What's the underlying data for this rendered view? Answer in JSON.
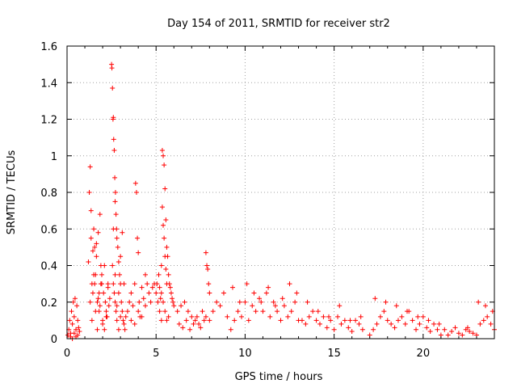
{
  "chart_data": {
    "type": "scatter",
    "title": "Day 154 of 2011, SRMTID for receiver str2",
    "xlabel": "GPS time / hours",
    "ylabel": "SRMTID / TECUs",
    "xlim": [
      0,
      24
    ],
    "ylim": [
      0,
      1.6
    ],
    "xticks": [
      0,
      5,
      10,
      15,
      20
    ],
    "xtick_labels": [
      "0",
      "5",
      "10",
      "15",
      "20"
    ],
    "yticks": [
      0,
      0.2,
      0.4,
      0.6,
      0.8,
      1.0,
      1.2,
      1.4,
      1.6
    ],
    "ytick_labels": [
      "0",
      "0.2",
      "0.4",
      "0.6",
      "0.8",
      "1",
      "1.2",
      "1.4",
      "1.6"
    ],
    "grid": true,
    "marker": "+",
    "series": [
      {
        "name": "SRMTID",
        "color": "#ff0000",
        "x": [
          0.05,
          0.1,
          0.15,
          0.2,
          0.25,
          0.3,
          0.35,
          0.4,
          0.45,
          0.5,
          0.55,
          0.6,
          0.65,
          0.7,
          0.2,
          0.3,
          0.4,
          0.5,
          0.6,
          1.2,
          1.25,
          1.3,
          1.35,
          1.4,
          1.45,
          1.5,
          1.55,
          1.6,
          1.65,
          1.7,
          1.75,
          1.8,
          1.85,
          1.9,
          1.95,
          2.0,
          2.05,
          2.1,
          2.15,
          2.2,
          2.25,
          2.3,
          2.35,
          2.4,
          1.3,
          1.4,
          1.5,
          1.6,
          1.7,
          1.8,
          1.9,
          2.0,
          2.1,
          2.2,
          2.3,
          1.35,
          1.45,
          1.55,
          1.65,
          1.75,
          1.85,
          1.95,
          2.5,
          2.52,
          2.55,
          2.58,
          2.6,
          2.62,
          2.65,
          2.68,
          2.7,
          2.72,
          2.75,
          2.78,
          2.8,
          2.85,
          2.9,
          2.95,
          3.0,
          3.05,
          3.1,
          3.15,
          3.2,
          3.25,
          3.3,
          2.55,
          2.6,
          2.65,
          2.7,
          2.75,
          2.8,
          2.9,
          3.0,
          3.1,
          3.2,
          2.6,
          2.7,
          2.8,
          2.9,
          3.0,
          3.4,
          3.5,
          3.6,
          3.7,
          3.8,
          3.85,
          3.9,
          3.95,
          4.0,
          4.05,
          4.1,
          4.2,
          4.3,
          4.4,
          4.5,
          4.6,
          4.7,
          4.8,
          4.9,
          3.6,
          3.8,
          4.0,
          4.2,
          4.4,
          5.0,
          5.05,
          5.1,
          5.15,
          5.2,
          5.25,
          5.3,
          5.35,
          5.4,
          5.45,
          5.5,
          5.55,
          5.6,
          5.65,
          5.7,
          5.75,
          5.8,
          5.85,
          5.9,
          5.95,
          6.0,
          5.2,
          5.3,
          5.35,
          5.4,
          5.45,
          5.5,
          5.55,
          5.6,
          5.3,
          5.4,
          5.5,
          5.6,
          5.7,
          6.2,
          6.4,
          6.6,
          6.8,
          7.0,
          7.2,
          7.4,
          7.6,
          7.8,
          8.0,
          8.2,
          8.4,
          8.6,
          8.8,
          9.0,
          6.3,
          6.5,
          6.7,
          6.9,
          7.1,
          7.3,
          7.5,
          7.7,
          7.8,
          7.85,
          7.9,
          7.95,
          8.0,
          9.2,
          9.4,
          9.6,
          9.8,
          10.0,
          10.2,
          10.4,
          10.6,
          10.8,
          11.0,
          11.2,
          11.4,
          11.6,
          11.8,
          12.0,
          12.2,
          12.4,
          12.6,
          12.8,
          13.0,
          9.3,
          9.7,
          10.1,
          10.5,
          10.9,
          11.3,
          11.7,
          12.1,
          12.5,
          12.9,
          13.2,
          13.4,
          13.6,
          13.8,
          14.0,
          14.2,
          14.4,
          14.6,
          14.8,
          15.0,
          15.2,
          15.4,
          15.6,
          15.8,
          16.0,
          16.2,
          16.4,
          16.6,
          13.5,
          14.1,
          14.7,
          15.3,
          15.9,
          16.5,
          17.0,
          17.2,
          17.4,
          17.6,
          17.8,
          18.0,
          18.2,
          18.4,
          18.6,
          18.8,
          19.0,
          19.2,
          19.4,
          19.6,
          19.8,
          20.0,
          20.2,
          20.4,
          20.6,
          20.8,
          21.0,
          17.3,
          17.9,
          18.5,
          19.1,
          19.7,
          20.3,
          20.9,
          21.2,
          21.4,
          21.6,
          21.8,
          22.0,
          22.2,
          22.4,
          22.6,
          22.8,
          23.0,
          23.2,
          23.4,
          23.6,
          23.8,
          24.0,
          22.5,
          23.1,
          23.5,
          23.9
        ],
        "y": [
          0.02,
          0.05,
          0.1,
          0.03,
          0.15,
          0.08,
          0.2,
          0.12,
          0.22,
          0.05,
          0.18,
          0.1,
          0.06,
          0.04,
          0.01,
          0.0,
          0.03,
          0.01,
          0.02,
          0.42,
          0.8,
          0.94,
          0.55,
          0.3,
          0.25,
          0.6,
          0.5,
          0.35,
          0.45,
          0.2,
          0.58,
          0.15,
          0.68,
          0.4,
          0.3,
          0.1,
          0.25,
          0.05,
          0.2,
          0.15,
          0.12,
          0.3,
          0.18,
          0.22,
          0.2,
          0.1,
          0.35,
          0.15,
          0.05,
          0.25,
          0.3,
          0.08,
          0.4,
          0.12,
          0.28,
          0.7,
          0.48,
          0.3,
          0.52,
          0.22,
          0.18,
          0.35,
          1.5,
          1.48,
          1.37,
          1.2,
          1.21,
          1.09,
          1.03,
          0.88,
          0.75,
          0.8,
          0.68,
          0.6,
          0.55,
          0.5,
          0.42,
          0.35,
          0.3,
          0.2,
          0.15,
          0.1,
          0.08,
          0.05,
          0.12,
          0.4,
          0.3,
          0.25,
          0.2,
          0.15,
          0.1,
          0.05,
          0.45,
          0.58,
          0.3,
          0.6,
          0.35,
          0.18,
          0.25,
          0.12,
          0.15,
          0.2,
          0.25,
          0.18,
          0.3,
          0.85,
          0.8,
          0.55,
          0.47,
          0.2,
          0.12,
          0.28,
          0.22,
          0.35,
          0.3,
          0.25,
          0.2,
          0.28,
          0.3,
          0.1,
          0.08,
          0.15,
          0.12,
          0.18,
          0.25,
          0.3,
          0.2,
          0.35,
          0.28,
          0.22,
          0.4,
          1.03,
          1.0,
          0.95,
          0.82,
          0.65,
          0.5,
          0.45,
          0.35,
          0.3,
          0.28,
          0.25,
          0.22,
          0.2,
          0.18,
          0.15,
          0.1,
          0.72,
          0.62,
          0.55,
          0.45,
          0.38,
          0.3,
          0.25,
          0.2,
          0.15,
          0.1,
          0.12,
          0.15,
          0.18,
          0.2,
          0.15,
          0.12,
          0.1,
          0.08,
          0.15,
          0.12,
          0.1,
          0.15,
          0.2,
          0.18,
          0.25,
          0.12,
          0.08,
          0.06,
          0.1,
          0.05,
          0.08,
          0.12,
          0.06,
          0.1,
          0.47,
          0.4,
          0.38,
          0.3,
          0.25,
          0.05,
          0.1,
          0.15,
          0.12,
          0.2,
          0.1,
          0.18,
          0.15,
          0.22,
          0.15,
          0.25,
          0.12,
          0.2,
          0.15,
          0.1,
          0.18,
          0.12,
          0.15,
          0.2,
          0.1,
          0.28,
          0.2,
          0.3,
          0.25,
          0.2,
          0.28,
          0.18,
          0.22,
          0.3,
          0.25,
          0.1,
          0.08,
          0.12,
          0.15,
          0.1,
          0.08,
          0.12,
          0.06,
          0.1,
          0.05,
          0.12,
          0.08,
          0.1,
          0.06,
          0.04,
          0.1,
          0.08,
          0.05,
          0.2,
          0.15,
          0.12,
          0.18,
          0.1,
          0.12,
          0.02,
          0.05,
          0.08,
          0.12,
          0.15,
          0.1,
          0.08,
          0.06,
          0.1,
          0.12,
          0.08,
          0.15,
          0.1,
          0.05,
          0.08,
          0.12,
          0.06,
          0.04,
          0.08,
          0.05,
          0.02,
          0.22,
          0.2,
          0.18,
          0.15,
          0.12,
          0.1,
          0.08,
          0.05,
          0.02,
          0.04,
          0.06,
          0.03,
          0.02,
          0.05,
          0.04,
          0.03,
          0.02,
          0.08,
          0.1,
          0.12,
          0.08,
          0.05,
          0.06,
          0.2,
          0.18,
          0.15
        ]
      }
    ]
  }
}
